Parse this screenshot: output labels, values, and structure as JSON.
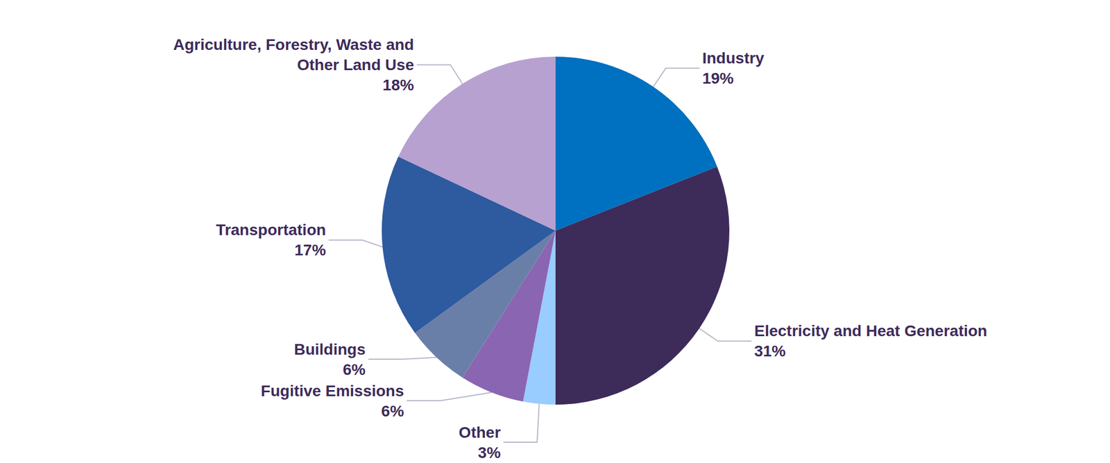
{
  "chart_data": {
    "type": "pie",
    "categories": [
      "Industry",
      "Electricity and Heat Generation",
      "Other",
      "Fugitive Emissions",
      "Buildings",
      "Transportation",
      "Agriculture, Forestry, Waste and Other Land Use"
    ],
    "values": [
      19,
      31,
      3,
      6,
      6,
      17,
      18
    ],
    "value_labels": [
      "19%",
      "31%",
      "3%",
      "6%",
      "6%",
      "17%",
      "18%"
    ],
    "colors": [
      "#0070c0",
      "#3d2b5a",
      "#99ccff",
      "#8a65b2",
      "#6a7fa8",
      "#2e5aa0",
      "#b7a1d0"
    ],
    "data_labels": true
  }
}
